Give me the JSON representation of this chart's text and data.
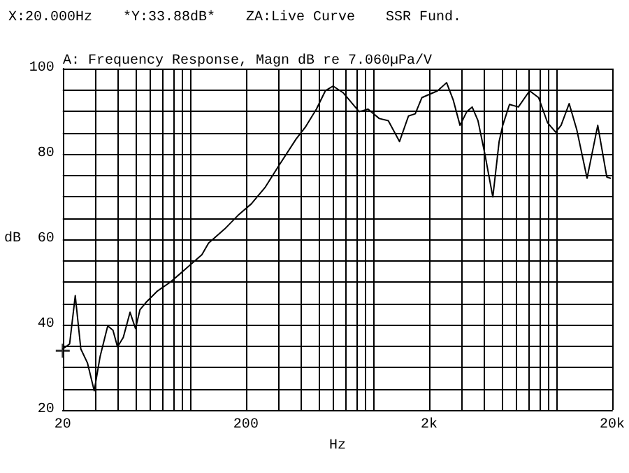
{
  "chart_data": {
    "type": "line",
    "title": "A: Frequency Response, Magn dB re 7.060µPa/V",
    "xlabel": "Hz",
    "ylabel": "dB",
    "annotations": [
      "X:20.000Hz",
      "*Y:33.88dB*",
      "ZA:Live Curve",
      "SSR Fund."
    ],
    "log": "x",
    "grid": true,
    "marker": "none",
    "line_style": "solid",
    "xlim": [
      20,
      20000
    ],
    "xticks": [
      20,
      {
        "value": 30,
        "label": null
      },
      {
        "value": 40,
        "label": null
      },
      {
        "value": 50,
        "label": null
      },
      {
        "value": 60,
        "label": null
      },
      {
        "value": 70,
        "label": null
      },
      {
        "value": 80,
        "label": null
      },
      {
        "value": 90,
        "label": null
      },
      {
        "value": 100,
        "label": null
      },
      200,
      {
        "value": 300,
        "label": null
      },
      {
        "value": 400,
        "label": null
      },
      {
        "value": 500,
        "label": null
      },
      {
        "value": 600,
        "label": null
      },
      {
        "value": 700,
        "label": null
      },
      {
        "value": 800,
        "label": null
      },
      {
        "value": 900,
        "label": null
      },
      {
        "value": 1000,
        "label": null
      },
      {
        "value": 2000,
        "label": "2k"
      },
      {
        "value": 3000,
        "label": null
      },
      {
        "value": 4000,
        "label": null
      },
      {
        "value": 5000,
        "label": null
      },
      {
        "value": 6000,
        "label": null
      },
      {
        "value": 7000,
        "label": null
      },
      {
        "value": 8000,
        "label": null
      },
      {
        "value": 9000,
        "label": null
      },
      {
        "value": 10000,
        "label": null
      },
      {
        "value": 20000,
        "label": "20k"
      }
    ],
    "ylim": [
      20,
      100
    ],
    "yticks": [
      20,
      {
        "value": 25,
        "label": null
      },
      {
        "value": 30,
        "label": null
      },
      {
        "value": 35,
        "label": null
      },
      40,
      {
        "value": 45,
        "label": null
      },
      {
        "value": 50,
        "label": null
      },
      {
        "value": 55,
        "label": null
      },
      60,
      {
        "value": 65,
        "label": null
      },
      {
        "value": 70,
        "label": null
      },
      {
        "value": 75,
        "label": null
      },
      80,
      {
        "value": 85,
        "label": null
      },
      {
        "value": 90,
        "label": null
      },
      {
        "value": 95,
        "label": null
      },
      100
    ],
    "series": [
      {
        "color": "#000000",
        "x": [
          20,
          21.8,
          23.4,
          25.1,
          27.3,
          29.7,
          32,
          35.2,
          37.6,
          39.8,
          42.8,
          46.6,
          49.9,
          52.8,
          56.9,
          65.4,
          77.5,
          94.5,
          115,
          125,
          153,
          181,
          214,
          254,
          300,
          376,
          421,
          485,
          543,
          598,
          681,
          830,
          929,
          1069,
          1198,
          1379,
          1544,
          1681,
          1828,
          2226,
          2493,
          2712,
          2951,
          3213,
          3438,
          3698,
          4024,
          4458,
          4825,
          5050,
          5497,
          6148,
          7081,
          7926,
          8873,
          9820,
          10514,
          11640,
          12820,
          14576,
          16674,
          18680,
          19540
        ],
        "values": [
          34.3,
          35.5,
          46.8,
          34.3,
          31,
          24.5,
          32.6,
          39.7,
          38.7,
          34.8,
          37,
          42.9,
          39.1,
          43.5,
          45.2,
          47.8,
          50,
          53.2,
          56.4,
          59.1,
          62.4,
          65.6,
          68.3,
          72.1,
          77,
          83.5,
          86.2,
          90.5,
          94.8,
          95.9,
          94.3,
          89.9,
          90.5,
          88.3,
          87.8,
          82.9,
          88.9,
          89.4,
          93.2,
          94.8,
          96.7,
          92.6,
          86.7,
          89.9,
          91,
          87.8,
          80.2,
          69.9,
          82.9,
          86.7,
          91.6,
          91,
          94.8,
          93.2,
          87.3,
          85.1,
          86.7,
          91.8,
          85.6,
          74.3,
          86.7,
          74.6,
          74.3
        ]
      },
      {
        "type": "scatter",
        "color": "#000000",
        "marker": "cross",
        "x": [
          20
        ],
        "values": [
          33.88
        ]
      }
    ]
  }
}
